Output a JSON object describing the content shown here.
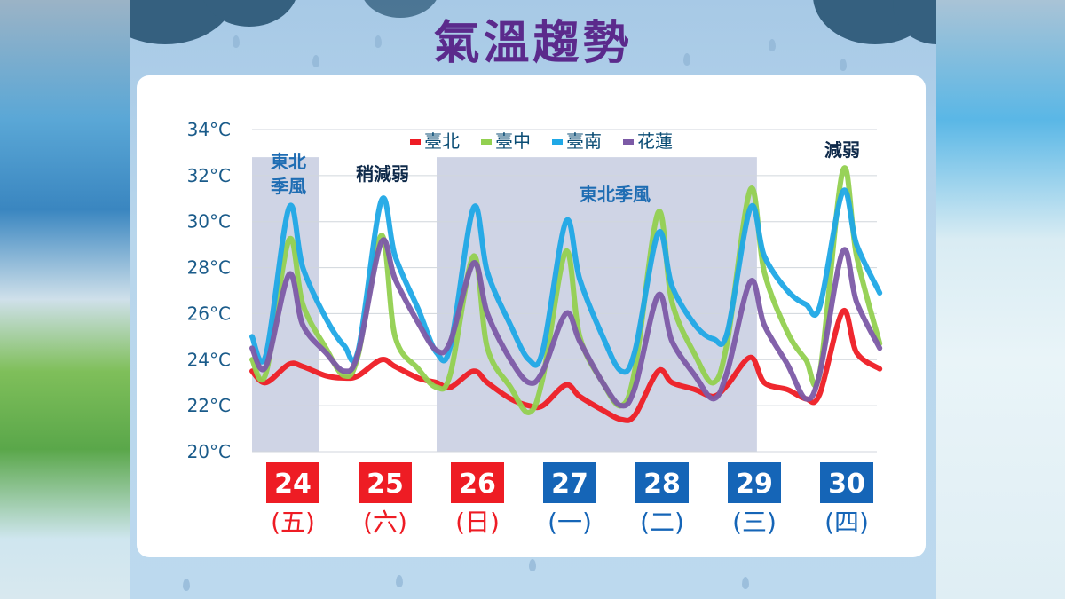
{
  "title": "氣溫趨勢",
  "colors": {
    "taipei": "#ee1c24",
    "taichung": "#92d050",
    "tainan": "#1fa8e6",
    "hualien": "#7c5aa6",
    "shade": "#c7cde0"
  },
  "annotations": {
    "ne1_line1": "東北",
    "ne1_line2": "季風",
    "weaker": "稍減弱",
    "ne2": "東北季風",
    "weakening": "減弱"
  },
  "chart_data": {
    "type": "line",
    "ylim": [
      20,
      34
    ],
    "yticks": [
      "20°C",
      "22°C",
      "24°C",
      "26°C",
      "28°C",
      "30°C",
      "32°C",
      "34°C"
    ],
    "days": [
      {
        "date": "24",
        "weekday": "(五)",
        "color": "#ee1c24"
      },
      {
        "date": "25",
        "weekday": "(六)",
        "color": "#ee1c24"
      },
      {
        "date": "26",
        "weekday": "(日)",
        "color": "#ee1c24"
      },
      {
        "date": "27",
        "weekday": "(一)",
        "color": "#1565b7"
      },
      {
        "date": "28",
        "weekday": "(二)",
        "color": "#1565b7"
      },
      {
        "date": "29",
        "weekday": "(三)",
        "color": "#1565b7"
      },
      {
        "date": "30",
        "weekday": "(四)",
        "color": "#1565b7"
      }
    ],
    "shaded_ranges": [
      [
        0,
        0.73
      ],
      [
        2.0,
        5.47
      ]
    ],
    "series": [
      {
        "name": "臺北",
        "color": "#ee1c24",
        "points": [
          [
            0,
            23.5
          ],
          [
            0.15,
            23.0
          ],
          [
            0.4,
            23.8
          ],
          [
            0.55,
            23.7
          ],
          [
            0.8,
            23.3
          ],
          [
            1.0,
            23.2
          ],
          [
            1.15,
            23.3
          ],
          [
            1.4,
            24.0
          ],
          [
            1.55,
            23.7
          ],
          [
            1.8,
            23.2
          ],
          [
            2.0,
            23.0
          ],
          [
            2.15,
            22.8
          ],
          [
            2.4,
            23.5
          ],
          [
            2.55,
            23.0
          ],
          [
            2.8,
            22.3
          ],
          [
            3.0,
            22.0
          ],
          [
            3.15,
            22.0
          ],
          [
            3.4,
            22.9
          ],
          [
            3.55,
            22.4
          ],
          [
            3.8,
            21.8
          ],
          [
            4.0,
            21.4
          ],
          [
            4.15,
            21.6
          ],
          [
            4.4,
            23.5
          ],
          [
            4.55,
            23.0
          ],
          [
            4.8,
            22.7
          ],
          [
            5.0,
            22.4
          ],
          [
            5.15,
            22.9
          ],
          [
            5.4,
            24.1
          ],
          [
            5.55,
            23.0
          ],
          [
            5.8,
            22.7
          ],
          [
            6.0,
            22.3
          ],
          [
            6.15,
            22.5
          ],
          [
            6.4,
            26.1
          ],
          [
            6.55,
            24.3
          ],
          [
            6.8,
            23.6
          ]
        ]
      },
      {
        "name": "臺中",
        "color": "#92d050",
        "points": [
          [
            0,
            24.0
          ],
          [
            0.15,
            23.4
          ],
          [
            0.4,
            29.2
          ],
          [
            0.55,
            26.4
          ],
          [
            0.8,
            24.5
          ],
          [
            1.0,
            23.3
          ],
          [
            1.15,
            24.2
          ],
          [
            1.4,
            29.4
          ],
          [
            1.55,
            25.0
          ],
          [
            1.8,
            23.6
          ],
          [
            2.0,
            22.8
          ],
          [
            2.15,
            23.4
          ],
          [
            2.4,
            28.5
          ],
          [
            2.55,
            24.5
          ],
          [
            2.8,
            22.8
          ],
          [
            3.0,
            21.7
          ],
          [
            3.15,
            23.2
          ],
          [
            3.4,
            28.7
          ],
          [
            3.55,
            25.0
          ],
          [
            3.8,
            23.0
          ],
          [
            4.0,
            22.0
          ],
          [
            4.15,
            23.6
          ],
          [
            4.4,
            30.4
          ],
          [
            4.55,
            26.5
          ],
          [
            4.8,
            24.2
          ],
          [
            5.0,
            23.0
          ],
          [
            5.15,
            24.8
          ],
          [
            5.4,
            31.4
          ],
          [
            5.55,
            27.8
          ],
          [
            5.8,
            25.2
          ],
          [
            6.0,
            24.0
          ],
          [
            6.15,
            23.4
          ],
          [
            6.4,
            32.2
          ],
          [
            6.55,
            28.5
          ],
          [
            6.8,
            24.7
          ]
        ]
      },
      {
        "name": "臺南",
        "color": "#1fa8e6",
        "points": [
          [
            0,
            25.0
          ],
          [
            0.15,
            24.2
          ],
          [
            0.4,
            30.6
          ],
          [
            0.55,
            28.0
          ],
          [
            0.8,
            25.8
          ],
          [
            1.0,
            24.6
          ],
          [
            1.15,
            24.4
          ],
          [
            1.4,
            30.9
          ],
          [
            1.55,
            28.5
          ],
          [
            1.8,
            26.2
          ],
          [
            2.0,
            24.3
          ],
          [
            2.15,
            24.6
          ],
          [
            2.4,
            30.6
          ],
          [
            2.55,
            27.8
          ],
          [
            2.8,
            25.5
          ],
          [
            3.0,
            24.0
          ],
          [
            3.15,
            24.4
          ],
          [
            3.4,
            30.0
          ],
          [
            3.55,
            27.5
          ],
          [
            3.8,
            25.0
          ],
          [
            4.0,
            23.5
          ],
          [
            4.15,
            24.4
          ],
          [
            4.4,
            29.5
          ],
          [
            4.55,
            27.2
          ],
          [
            4.8,
            25.5
          ],
          [
            5.0,
            24.9
          ],
          [
            5.15,
            25.2
          ],
          [
            5.4,
            30.6
          ],
          [
            5.55,
            28.5
          ],
          [
            5.8,
            27.0
          ],
          [
            6.0,
            26.4
          ],
          [
            6.15,
            26.3
          ],
          [
            6.4,
            31.3
          ],
          [
            6.55,
            29.0
          ],
          [
            6.8,
            26.9
          ]
        ]
      },
      {
        "name": "花蓮",
        "color": "#7c5aa6",
        "points": [
          [
            0,
            24.5
          ],
          [
            0.15,
            23.7
          ],
          [
            0.4,
            27.7
          ],
          [
            0.55,
            25.5
          ],
          [
            0.8,
            24.3
          ],
          [
            1.0,
            23.5
          ],
          [
            1.15,
            24.3
          ],
          [
            1.4,
            29.1
          ],
          [
            1.55,
            27.5
          ],
          [
            1.8,
            25.6
          ],
          [
            2.0,
            24.4
          ],
          [
            2.15,
            24.8
          ],
          [
            2.4,
            28.2
          ],
          [
            2.55,
            26.0
          ],
          [
            2.8,
            24.0
          ],
          [
            3.0,
            23.0
          ],
          [
            3.15,
            23.5
          ],
          [
            3.4,
            26.0
          ],
          [
            3.55,
            24.8
          ],
          [
            3.8,
            23.0
          ],
          [
            4.0,
            22.0
          ],
          [
            4.15,
            22.8
          ],
          [
            4.4,
            26.8
          ],
          [
            4.55,
            24.8
          ],
          [
            4.8,
            23.3
          ],
          [
            5.0,
            22.3
          ],
          [
            5.15,
            23.5
          ],
          [
            5.4,
            27.4
          ],
          [
            5.55,
            25.5
          ],
          [
            5.8,
            23.8
          ],
          [
            6.0,
            22.3
          ],
          [
            6.15,
            23.4
          ],
          [
            6.4,
            28.7
          ],
          [
            6.55,
            26.5
          ],
          [
            6.8,
            24.5
          ]
        ]
      }
    ]
  }
}
